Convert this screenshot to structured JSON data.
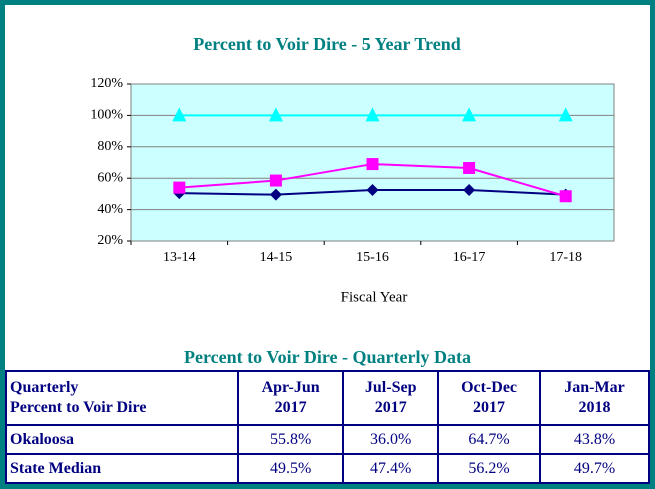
{
  "chart_data": {
    "type": "line",
    "title": "Percent to Voir Dire - 5 Year Trend",
    "x_label": "Fiscal Year",
    "categories": [
      "13-14",
      "14-15",
      "15-16",
      "16-17",
      "17-18"
    ],
    "series": [
      {
        "color": "#000080",
        "marker": "diamond",
        "values": [
          50.5,
          49.5,
          52.5,
          52.5,
          49.5
        ]
      },
      {
        "color": "#ff00ff",
        "marker": "square",
        "values": [
          54,
          58.5,
          69,
          66.5,
          48.5
        ]
      },
      {
        "color": "#00ffff",
        "marker": "triangle",
        "values": [
          100,
          100,
          100,
          100,
          100
        ]
      }
    ],
    "ylim": [
      20,
      120
    ],
    "yticks": [
      {
        "value": 20,
        "label": "20%"
      },
      {
        "value": 40,
        "label": "40%"
      },
      {
        "value": 60,
        "label": "60%"
      },
      {
        "value": 80,
        "label": "80%"
      },
      {
        "value": 100,
        "label": "100%"
      },
      {
        "value": 120,
        "label": "120%"
      }
    ],
    "grid": true
  },
  "table": {
    "title": "Percent to Voir Dire - Quarterly Data",
    "header": [
      [
        "Quarterly",
        "Percent to Voir Dire"
      ],
      [
        "Apr-Jun",
        "2017"
      ],
      [
        "Jul-Sep",
        "2017"
      ],
      [
        "Oct-Dec",
        "2017"
      ],
      [
        "Jan-Mar",
        "2018"
      ]
    ],
    "rows": [
      [
        "Okaloosa",
        "55.8%",
        "36.0%",
        "64.7%",
        "43.8%"
      ],
      [
        "State Median",
        "49.5%",
        "47.4%",
        "56.2%",
        "49.7%"
      ]
    ]
  }
}
